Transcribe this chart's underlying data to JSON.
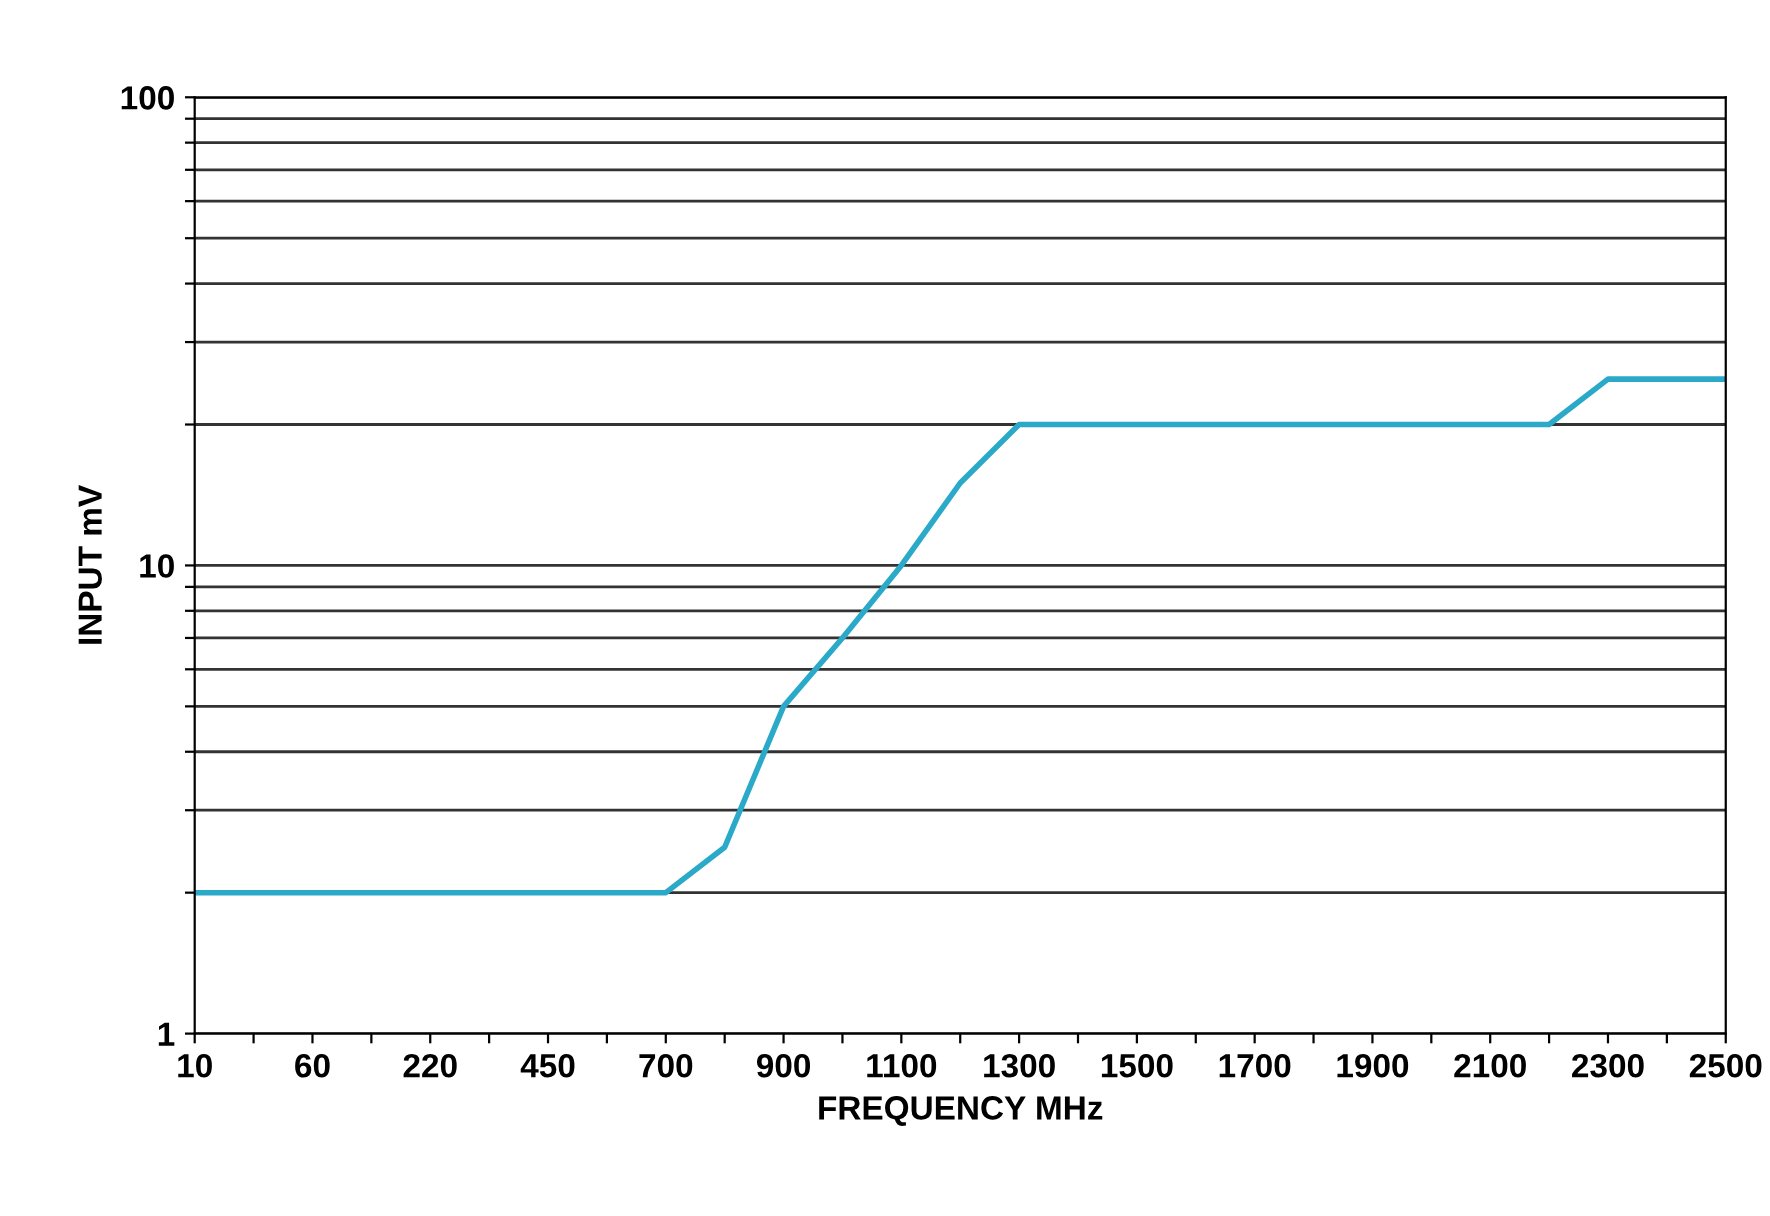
{
  "chart_data": {
    "type": "line",
    "xlabel": "FREQUENCY MHz",
    "ylabel": "INPUT mV",
    "categories": [
      "10",
      null,
      "60",
      null,
      "220",
      null,
      "450",
      null,
      "700",
      null,
      "900",
      null,
      "1100",
      null,
      "1300",
      null,
      "1500",
      null,
      "1700",
      null,
      "1900",
      null,
      "2100",
      null,
      "2300",
      null,
      "2500"
    ],
    "series": [
      {
        "color": "#2aa9c9",
        "values": [
          2,
          2,
          2,
          2,
          2,
          2,
          2,
          2,
          2,
          2.5,
          5,
          7,
          10,
          15,
          20,
          20,
          20,
          20,
          20,
          20,
          20,
          20,
          20,
          20,
          25,
          25,
          25
        ]
      }
    ],
    "log": "y",
    "ylim": [
      1,
      100
    ],
    "yticks": [
      1,
      {
        "value": 2,
        "label": null
      },
      {
        "value": 3,
        "label": null
      },
      {
        "value": 4,
        "label": null
      },
      {
        "value": 5,
        "label": null
      },
      {
        "value": 6,
        "label": null
      },
      {
        "value": 7,
        "label": null
      },
      {
        "value": 8,
        "label": null
      },
      {
        "value": 9,
        "label": null
      },
      10,
      {
        "value": 20,
        "label": null
      },
      {
        "value": 30,
        "label": null
      },
      {
        "value": 40,
        "label": null
      },
      {
        "value": 50,
        "label": null
      },
      {
        "value": 60,
        "label": null
      },
      {
        "value": 70,
        "label": null
      },
      {
        "value": 80,
        "label": null
      },
      {
        "value": 90,
        "label": null
      },
      100
    ],
    "grid": "y",
    "legend": false,
    "marker": "none",
    "line_style": "solid"
  }
}
